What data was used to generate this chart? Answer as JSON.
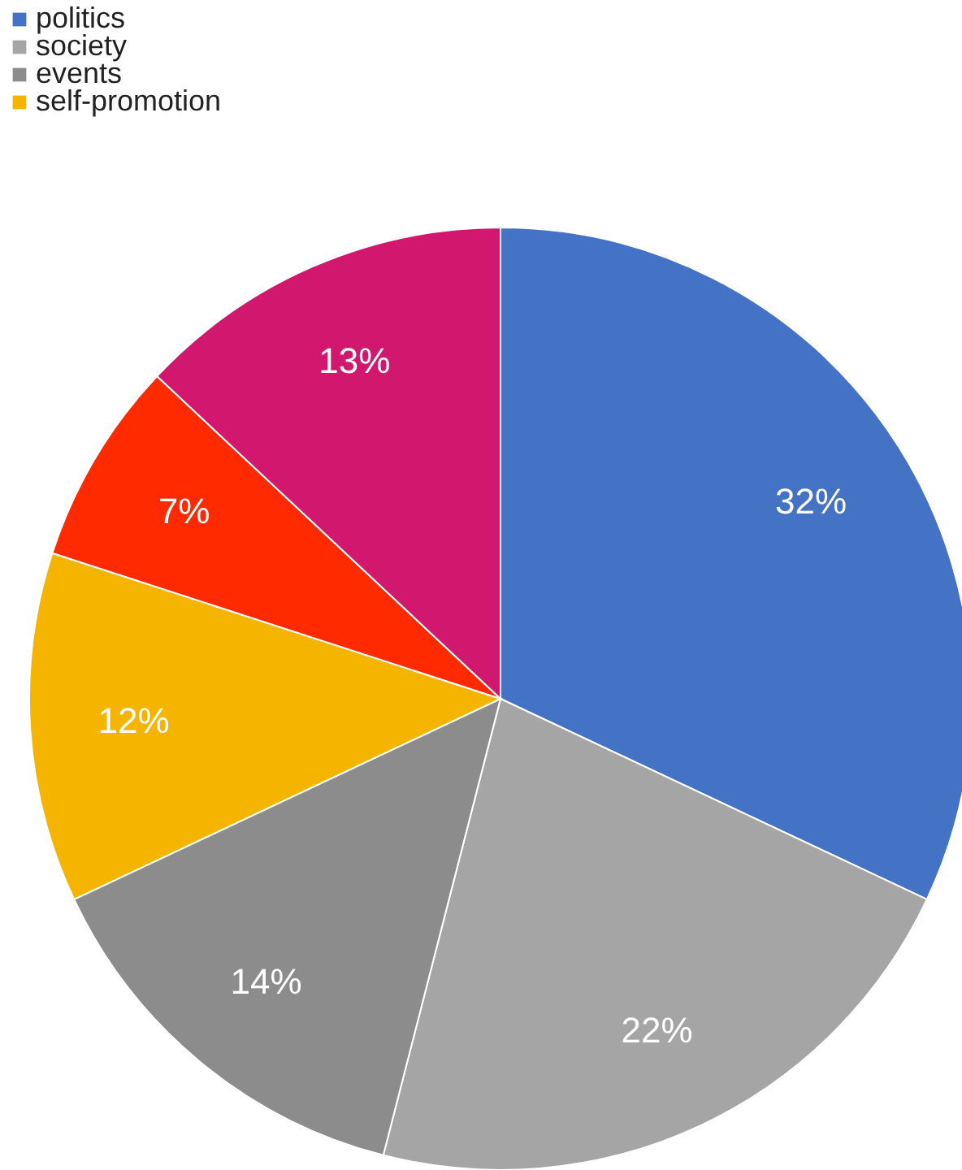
{
  "chart_data": {
    "type": "pie",
    "categories": [
      "politics",
      "society",
      "events",
      "self-promotion",
      null,
      null
    ],
    "values": [
      32,
      22,
      14,
      12,
      7,
      13
    ],
    "value_labels": [
      "32%",
      "22%",
      "14%",
      "12%",
      "7%",
      "13%"
    ],
    "colors": [
      "#4472c4",
      "#a5a5a5",
      "#8c8c8c",
      "#f4b400",
      "#ff2a00",
      "#d2176f"
    ],
    "legend": "top left"
  }
}
